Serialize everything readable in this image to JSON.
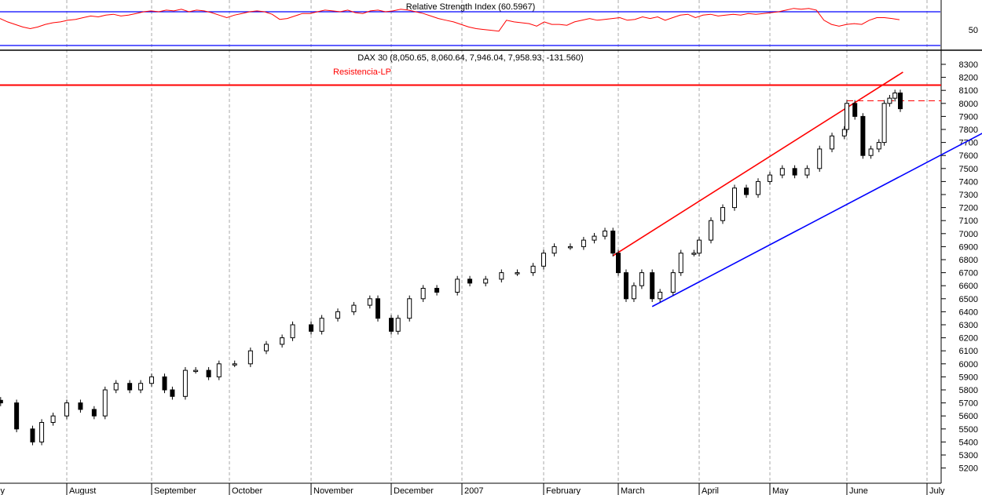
{
  "rsi_panel": {
    "title": "Relative Strength Index (60.5967)",
    "axis_label": "50"
  },
  "price_panel": {
    "title": "DAX 30 (8,050.65, 8,060.64, 7,946.04, 7,958.93, -131.560)",
    "annotation": "Resistencia-LP"
  },
  "colors": {
    "rsi": "#ff0000",
    "bands": "#0000ff",
    "resistance": "#ff0000",
    "support": "#0000ff",
    "candle": "#000000"
  },
  "chart_data": [
    {
      "type": "line",
      "title": "Relative Strength Index (60.5967)",
      "ylim": [
        20,
        80
      ],
      "ticks": [
        50
      ],
      "bands": [
        70,
        30
      ],
      "values": [
        62,
        58,
        55,
        52,
        50,
        52,
        55,
        57,
        58,
        60,
        61,
        63,
        65,
        64,
        66,
        67,
        65,
        66,
        68,
        70,
        71,
        70,
        72,
        71,
        73,
        70,
        72,
        71,
        69,
        66,
        63,
        66,
        68,
        70,
        71,
        70,
        67,
        61,
        62,
        65,
        68,
        68,
        70,
        72,
        71,
        70,
        72,
        69,
        68,
        71,
        72,
        70,
        71,
        73,
        72,
        70,
        68,
        65,
        62,
        60,
        58,
        55,
        52,
        50,
        49,
        48,
        47,
        60,
        58,
        57,
        56,
        53,
        58,
        55,
        55,
        54,
        58,
        60,
        62,
        60,
        61,
        62,
        63,
        60,
        61,
        64,
        62,
        64,
        60,
        63,
        66,
        67,
        63,
        66,
        67,
        65,
        66,
        67,
        66,
        68,
        67,
        68,
        69,
        70,
        72,
        74,
        73,
        74,
        72,
        60,
        55,
        53,
        55,
        56,
        55,
        60,
        63,
        63,
        62,
        60.6
      ]
    },
    {
      "type": "candlestick",
      "title": "DAX 30 (8,050.65, 8,060.64, 7,946.04, 7,958.93, -131.560)",
      "ylim": [
        5150,
        8380
      ],
      "yticks": [
        5200,
        5300,
        5400,
        5500,
        5600,
        5700,
        5800,
        5900,
        6000,
        6100,
        6200,
        6300,
        6400,
        6500,
        6600,
        6700,
        6800,
        6900,
        7000,
        7100,
        7200,
        7300,
        7400,
        7500,
        7600,
        7700,
        7800,
        7900,
        8000,
        8100,
        8200,
        8300
      ],
      "xticks": [
        "ly",
        "August",
        "September",
        "October",
        "November",
        "December",
        "2007",
        "February",
        "March",
        "April",
        "May",
        "June",
        "July"
      ],
      "closes": [
        [
          "2006-07-03",
          5700
        ],
        [
          "2006-07-10",
          5500
        ],
        [
          "2006-07-17",
          5400
        ],
        [
          "2006-07-21",
          5550
        ],
        [
          "2006-07-26",
          5600
        ],
        [
          "2006-08-01",
          5700
        ],
        [
          "2006-08-06",
          5650
        ],
        [
          "2006-08-11",
          5600
        ],
        [
          "2006-08-15",
          5800
        ],
        [
          "2006-08-19",
          5850
        ],
        [
          "2006-08-24",
          5800
        ],
        [
          "2006-08-28",
          5850
        ],
        [
          "2006-09-01",
          5900
        ],
        [
          "2006-09-06",
          5800
        ],
        [
          "2006-09-09",
          5750
        ],
        [
          "2006-09-14",
          5950
        ],
        [
          "2006-09-18",
          5950
        ],
        [
          "2006-09-23",
          5900
        ],
        [
          "2006-09-27",
          6000
        ],
        [
          "2006-10-03",
          6000
        ],
        [
          "2006-10-09",
          6100
        ],
        [
          "2006-10-15",
          6150
        ],
        [
          "2006-10-21",
          6200
        ],
        [
          "2006-10-25",
          6300
        ],
        [
          "2006-11-01",
          6250
        ],
        [
          "2006-11-05",
          6350
        ],
        [
          "2006-11-11",
          6400
        ],
        [
          "2006-11-17",
          6450
        ],
        [
          "2006-11-23",
          6500
        ],
        [
          "2006-11-26",
          6350
        ],
        [
          "2006-12-01",
          6250
        ],
        [
          "2006-12-04",
          6350
        ],
        [
          "2006-12-09",
          6500
        ],
        [
          "2006-12-15",
          6580
        ],
        [
          "2006-12-21",
          6550
        ],
        [
          "2006-12-30",
          6650
        ],
        [
          "2007-01-04",
          6620
        ],
        [
          "2007-01-10",
          6650
        ],
        [
          "2007-01-16",
          6700
        ],
        [
          "2007-01-22",
          6700
        ],
        [
          "2007-01-28",
          6750
        ],
        [
          "2007-02-01",
          6850
        ],
        [
          "2007-02-05",
          6900
        ],
        [
          "2007-02-11",
          6900
        ],
        [
          "2007-02-16",
          6950
        ],
        [
          "2007-02-20",
          6980
        ],
        [
          "2007-02-24",
          7020
        ],
        [
          "2007-02-27",
          6850
        ],
        [
          "2007-03-01",
          6700
        ],
        [
          "2007-03-04",
          6500
        ],
        [
          "2007-03-07",
          6600
        ],
        [
          "2007-03-10",
          6700
        ],
        [
          "2007-03-14",
          6500
        ],
        [
          "2007-03-17",
          6550
        ],
        [
          "2007-03-22",
          6700
        ],
        [
          "2007-03-25",
          6850
        ],
        [
          "2007-03-30",
          6850
        ],
        [
          "2007-04-01",
          6950
        ],
        [
          "2007-04-06",
          7100
        ],
        [
          "2007-04-11",
          7200
        ],
        [
          "2007-04-16",
          7350
        ],
        [
          "2007-04-21",
          7300
        ],
        [
          "2007-04-26",
          7400
        ],
        [
          "2007-05-01",
          7450
        ],
        [
          "2007-05-06",
          7500
        ],
        [
          "2007-05-11",
          7450
        ],
        [
          "2007-05-16",
          7500
        ],
        [
          "2007-05-21",
          7650
        ],
        [
          "2007-05-26",
          7750
        ],
        [
          "2007-05-31",
          7800
        ],
        [
          "2007-06-01",
          8000
        ],
        [
          "2007-06-04",
          7900
        ],
        [
          "2007-06-07",
          7600
        ],
        [
          "2007-06-10",
          7650
        ],
        [
          "2007-06-13",
          7700
        ],
        [
          "2007-06-15",
          8000
        ],
        [
          "2007-06-17",
          8040
        ],
        [
          "2007-06-19",
          8080
        ],
        [
          "2007-06-21",
          7959
        ]
      ],
      "lines": [
        {
          "name": "Resistencia-LP",
          "kind": "horizontal",
          "value": 8140,
          "color": "#ff0000"
        },
        {
          "kind": "horizontal-dashed",
          "from": "2007-06-01",
          "value": 8020,
          "color": "#ff0000"
        },
        {
          "kind": "trend",
          "from": [
            "2007-02-27",
            6830
          ],
          "to": [
            "2007-06-22",
            8240
          ],
          "color": "#ff0000"
        },
        {
          "kind": "trend",
          "from": [
            "2007-03-14",
            6440
          ],
          "to": [
            "2007-07-31",
            7860
          ],
          "color": "#0000ff"
        }
      ]
    }
  ]
}
